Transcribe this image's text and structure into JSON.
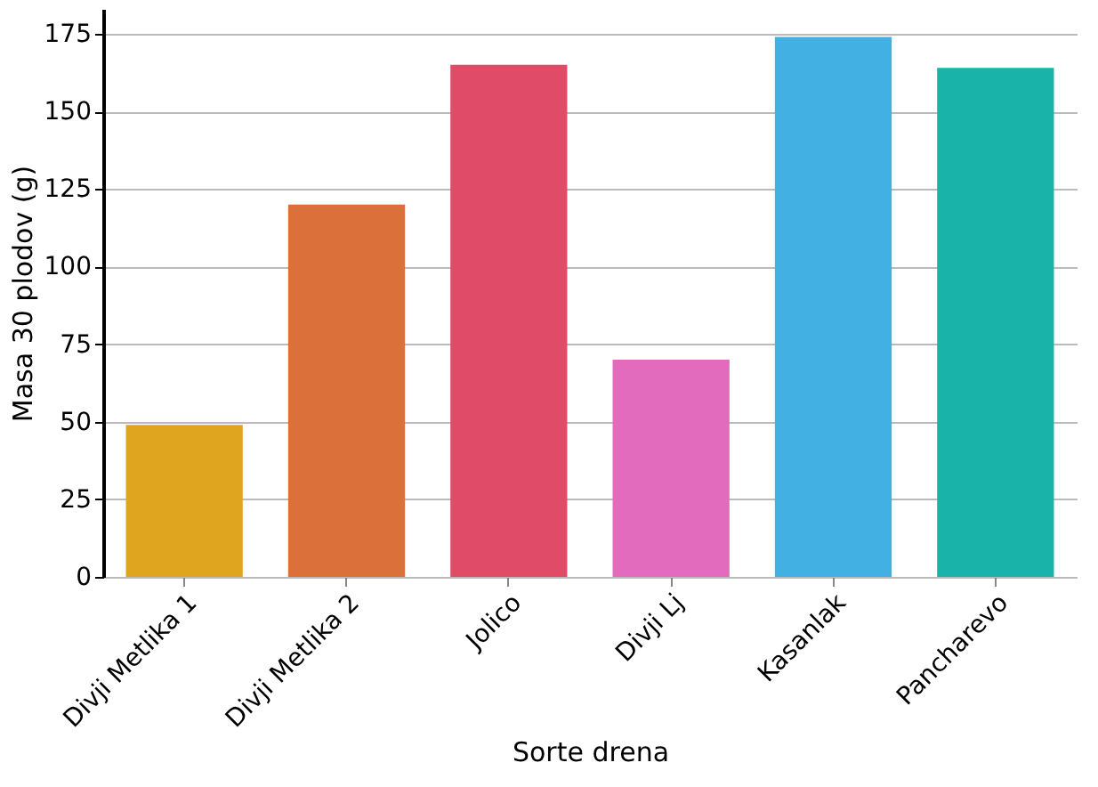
{
  "chart_data": {
    "type": "bar",
    "xlabel": "Sorte drena",
    "ylabel": "Masa 30 plodov (g)",
    "categories": [
      "Divji Metlika 1",
      "Divji Metlika 2",
      "Jolico",
      "Divji Lj",
      "Kasanlak",
      "Pancharevo"
    ],
    "values": [
      49,
      120,
      165,
      70,
      174,
      164
    ],
    "colors": [
      "#e0a51f",
      "#dc703a",
      "#e04c67",
      "#e36bbd",
      "#42b0e3",
      "#1ab3a9"
    ],
    "ylim": [
      0,
      183
    ],
    "yticks": [
      0,
      25,
      50,
      75,
      100,
      125,
      150,
      175
    ],
    "grid": "y"
  }
}
